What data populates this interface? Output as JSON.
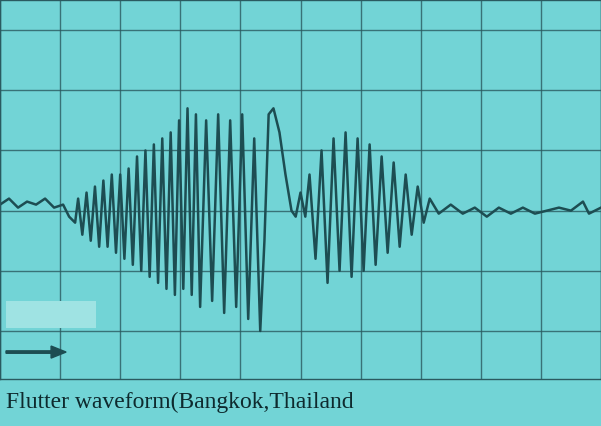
{
  "chart_data": {
    "type": "line",
    "title": "Flutter waveform(Bangkok,Thailand",
    "color": "#1d4d52",
    "grid": true,
    "tick_labels": false,
    "xlim": [
      0,
      10
    ],
    "ylim": [
      -2.8,
      3.5
    ],
    "xticks": [
      0,
      1,
      2,
      3,
      4,
      5,
      6,
      7,
      8,
      9,
      10
    ],
    "yticks": [
      -2,
      -1,
      0,
      1,
      2,
      3
    ],
    "x": [
      0,
      0.15,
      0.3,
      0.45,
      0.6,
      0.75,
      0.9,
      1.05,
      1.15,
      1.25,
      1.3,
      1.37,
      1.44,
      1.51,
      1.58,
      1.65,
      1.72,
      1.79,
      1.86,
      1.93,
      2.0,
      2.07,
      2.14,
      2.21,
      2.28,
      2.35,
      2.42,
      2.49,
      2.56,
      2.63,
      2.7,
      2.77,
      2.84,
      2.91,
      2.98,
      3.05,
      3.12,
      3.19,
      3.26,
      3.33,
      3.43,
      3.53,
      3.63,
      3.73,
      3.83,
      3.93,
      4.03,
      4.13,
      4.23,
      4.33,
      4.4,
      4.47,
      4.55,
      4.65,
      4.75,
      4.85,
      4.92,
      5.0,
      5.08,
      5.15,
      5.25,
      5.35,
      5.45,
      5.55,
      5.65,
      5.75,
      5.85,
      5.95,
      6.05,
      6.15,
      6.25,
      6.35,
      6.45,
      6.55,
      6.65,
      6.75,
      6.85,
      6.95,
      7.05,
      7.15,
      7.3,
      7.5,
      7.7,
      7.9,
      8.1,
      8.3,
      8.5,
      8.7,
      8.9,
      9.1,
      9.3,
      9.5,
      9.7,
      9.8,
      10.0
    ],
    "values": [
      0.1,
      0.2,
      0.05,
      0.15,
      0.1,
      0.2,
      0.05,
      0.1,
      -0.1,
      -0.2,
      0.2,
      -0.4,
      0.3,
      -0.5,
      0.4,
      -0.6,
      0.5,
      -0.6,
      0.6,
      -0.7,
      0.6,
      -0.8,
      0.7,
      -0.9,
      0.9,
      -1.0,
      1.0,
      -1.1,
      1.1,
      -1.2,
      1.2,
      -1.3,
      1.3,
      -1.4,
      1.5,
      -1.3,
      1.7,
      -1.4,
      1.6,
      -1.6,
      1.5,
      -1.5,
      1.6,
      -1.7,
      1.5,
      -1.6,
      1.6,
      -1.8,
      1.2,
      -2.0,
      -0.5,
      1.6,
      1.7,
      1.3,
      0.6,
      0.0,
      -0.1,
      0.3,
      -0.1,
      0.6,
      -0.8,
      1.0,
      -1.2,
      1.2,
      -1.0,
      1.3,
      -1.1,
      1.2,
      -1.0,
      1.1,
      -0.9,
      0.9,
      -0.7,
      0.8,
      -0.6,
      0.6,
      -0.4,
      0.4,
      -0.2,
      0.2,
      -0.05,
      0.1,
      -0.05,
      0.05,
      -0.1,
      0.05,
      -0.05,
      0.05,
      -0.05,
      0.0,
      0.05,
      0.0,
      0.15,
      -0.05,
      0.05
    ]
  }
}
